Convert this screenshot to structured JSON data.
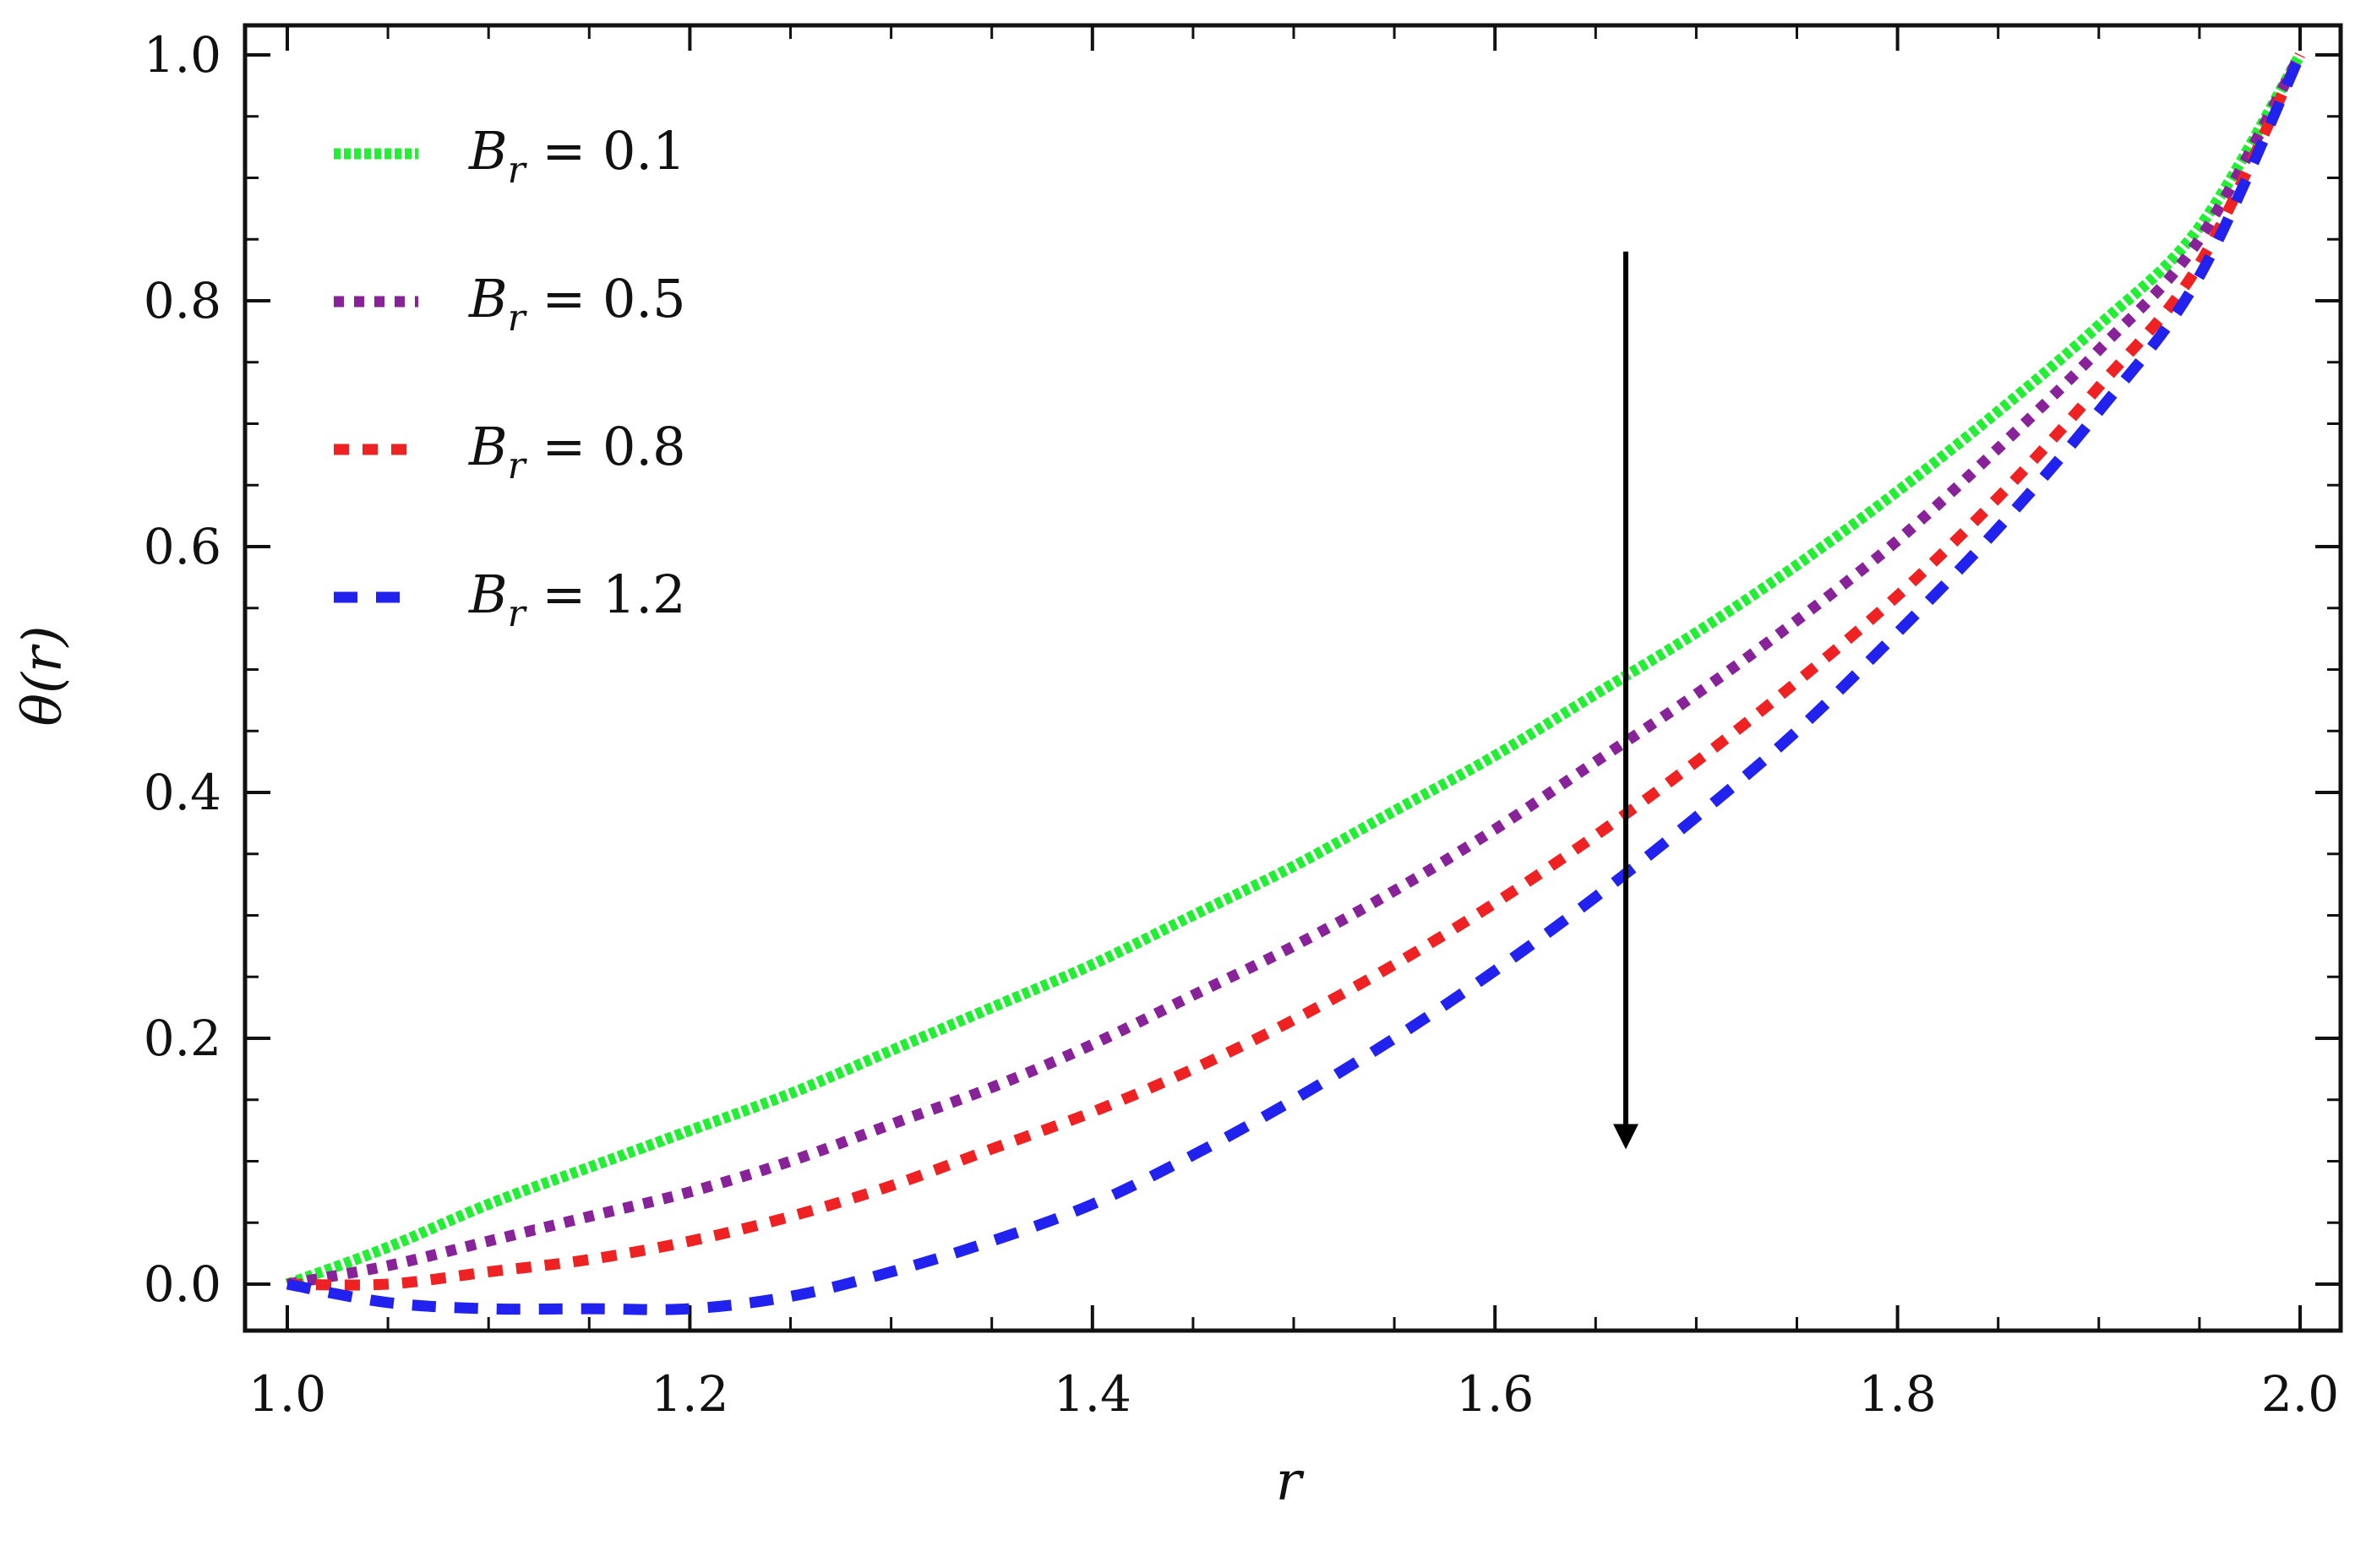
{
  "chart_data": {
    "type": "line",
    "title": "",
    "xlabel": "r",
    "ylabel": "θ(r)",
    "xlim": [
      1.0,
      2.0
    ],
    "ylim": [
      -0.035,
      1.0
    ],
    "xticks": [
      "1.0",
      "1.2",
      "1.4",
      "1.6",
      "1.8",
      "2.0"
    ],
    "yticks": [
      "0.0",
      "0.2",
      "0.4",
      "0.6",
      "0.8",
      "1.0"
    ],
    "grid": false,
    "legend_position": "top-left",
    "x": [
      1.0,
      1.05,
      1.1,
      1.15,
      1.2,
      1.25,
      1.3,
      1.35,
      1.4,
      1.45,
      1.5,
      1.55,
      1.6,
      1.65,
      1.7,
      1.75,
      1.8,
      1.85,
      1.9,
      1.95,
      2.0
    ],
    "series": [
      {
        "name": "B_r = 0.1",
        "label_main": "B",
        "label_sub": "r",
        "label_value": " = 0.1",
        "color": "#22ee33",
        "dash": "8,4",
        "values": [
          0.0,
          0.03,
          0.065,
          0.095,
          0.125,
          0.155,
          0.19,
          0.225,
          0.26,
          0.3,
          0.34,
          0.385,
          0.43,
          0.48,
          0.53,
          0.585,
          0.645,
          0.71,
          0.78,
          0.86,
          1.0
        ]
      },
      {
        "name": "B_r = 0.5",
        "label_main": "B",
        "label_sub": "r",
        "label_value": " = 0.5",
        "color": "#882299",
        "dash": "12,12",
        "values": [
          0.0,
          0.015,
          0.035,
          0.055,
          0.075,
          0.1,
          0.13,
          0.16,
          0.195,
          0.235,
          0.275,
          0.32,
          0.37,
          0.425,
          0.48,
          0.54,
          0.605,
          0.68,
          0.76,
          0.85,
          1.0
        ]
      },
      {
        "name": "B_r = 0.8",
        "label_main": "B",
        "label_sub": "r",
        "label_value": " = 0.8",
        "color": "#ee2222",
        "dash": "18,16",
        "values": [
          0.0,
          0.0,
          0.01,
          0.02,
          0.035,
          0.055,
          0.08,
          0.11,
          0.14,
          0.175,
          0.215,
          0.26,
          0.31,
          0.365,
          0.425,
          0.49,
          0.56,
          0.64,
          0.73,
          0.83,
          1.0
        ]
      },
      {
        "name": "B_r = 1.2",
        "label_main": "B",
        "label_sub": "r",
        "label_value": " = 1.2",
        "color": "#2222ee",
        "dash": "28,22",
        "values": [
          0.0,
          -0.015,
          -0.02,
          -0.02,
          -0.02,
          -0.01,
          0.01,
          0.035,
          0.065,
          0.105,
          0.15,
          0.2,
          0.255,
          0.315,
          0.38,
          0.45,
          0.53,
          0.615,
          0.71,
          0.82,
          1.0
        ]
      }
    ],
    "annotation": {
      "type": "trend-arrow",
      "x": 1.665,
      "y_start": 0.84,
      "y_end": 0.12,
      "color": "#000000"
    }
  }
}
